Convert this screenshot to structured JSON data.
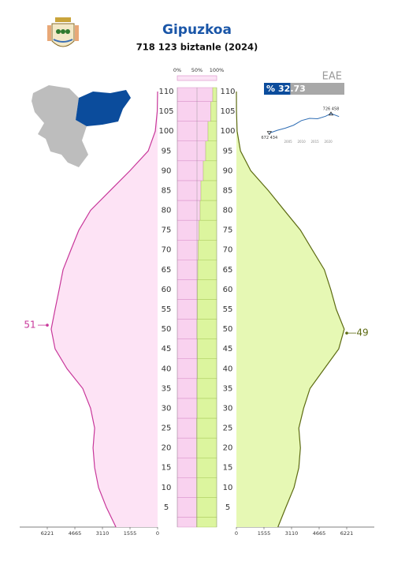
{
  "chart_data": [
    {
      "type": "pyramid",
      "title": "Gipuzkoa",
      "subtitle": "718 123 biztanle (2024)",
      "x": [
        0,
        5,
        10,
        15,
        20,
        25,
        30,
        35,
        40,
        45,
        50,
        55,
        60,
        65,
        70,
        75,
        80,
        85,
        90,
        95,
        100,
        105,
        110
      ],
      "ylim": [
        0,
        111
      ],
      "yticks": [
        5,
        10,
        15,
        20,
        25,
        30,
        35,
        40,
        45,
        50,
        55,
        60,
        65,
        70,
        75,
        80,
        85,
        90,
        95,
        100,
        105,
        110
      ],
      "xlim": [
        0,
        7776
      ],
      "xticks": [
        0,
        1555,
        3110,
        4665,
        6221
      ],
      "series": [
        {
          "color": "#c8379a",
          "fill": "#fde3f5",
          "side": "left",
          "peak_age": 51,
          "values": [
            2350,
            2890,
            3330,
            3550,
            3640,
            3550,
            3780,
            4220,
            5110,
            5780,
            6000,
            5780,
            5550,
            5330,
            4890,
            4440,
            3780,
            2670,
            1560,
            530,
            130,
            20,
            0
          ]
        },
        {
          "color": "#5d6b12",
          "fill": "#e6f8b4",
          "side": "right",
          "peak_age": 49,
          "values": [
            2340,
            2790,
            3250,
            3520,
            3610,
            3520,
            3790,
            4150,
            4960,
            5770,
            6080,
            5630,
            5320,
            4960,
            4280,
            3610,
            2700,
            1800,
            810,
            230,
            40,
            5,
            0
          ]
        }
      ]
    },
    {
      "type": "share",
      "x": [
        0,
        5,
        10,
        15,
        20,
        25,
        30,
        35,
        40,
        45,
        50,
        55,
        60,
        65,
        70,
        75,
        80,
        85,
        90,
        95,
        100,
        105,
        110
      ],
      "xlim": [
        0,
        100
      ],
      "xticks": [
        {
          "value": 0,
          "label": "0%"
        },
        {
          "value": 50,
          "label": "50%"
        },
        {
          "value": 100,
          "label": "100%"
        }
      ],
      "series": [
        {
          "color": "#f9d2ef",
          "values": [
            49,
            49,
            49,
            49,
            49,
            49,
            50,
            50,
            51,
            51,
            50,
            51,
            51,
            52,
            53,
            55,
            58,
            60,
            66,
            72,
            78,
            85,
            90
          ]
        },
        {
          "color": "#dcf59e",
          "values": [
            51,
            51,
            51,
            51,
            51,
            51,
            50,
            50,
            49,
            49,
            50,
            49,
            49,
            48,
            47,
            45,
            42,
            40,
            34,
            28,
            22,
            15,
            10
          ]
        }
      ]
    },
    {
      "type": "line",
      "title": "EAE",
      "indicator_label": "%",
      "indicator": 32.73,
      "indicator_lim": [
        0,
        100
      ],
      "x": [
        1998,
        2001,
        2004,
        2007,
        2010,
        2013,
        2016,
        2019,
        2021,
        2024
      ],
      "values": [
        672434,
        680000,
        686000,
        694000,
        707000,
        713000,
        712000,
        719000,
        726458,
        718123
      ],
      "value_labels": [
        "672 434",
        null,
        null,
        null,
        null,
        null,
        null,
        null,
        "726 458",
        null
      ],
      "xlim": [
        1996,
        2026
      ],
      "xticks": [
        2005,
        2010,
        2015,
        2020
      ],
      "ylim": [
        665000,
        735000
      ],
      "color": "#2e6db4"
    }
  ]
}
